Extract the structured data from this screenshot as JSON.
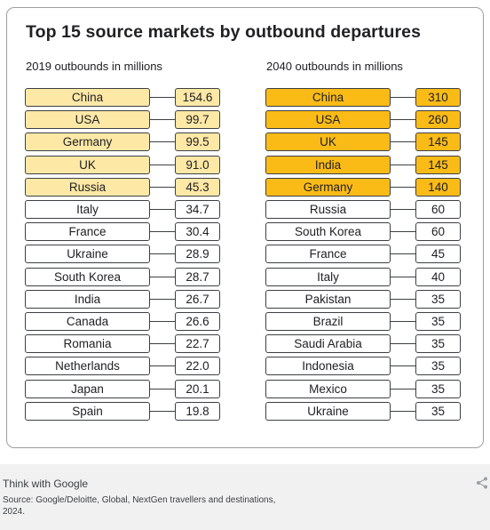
{
  "chart_data": [
    {
      "type": "table",
      "title": "Top 15 source markets by outbound departures",
      "subtitle": "2019 outbounds in millions",
      "categories": [
        "China",
        "USA",
        "Germany",
        "UK",
        "Russia",
        "Italy",
        "France",
        "Ukraine",
        "South Korea",
        "India",
        "Canada",
        "Romania",
        "Netherlands",
        "Japan",
        "Spain"
      ],
      "values": [
        "154.6",
        "99.7",
        "99.5",
        "91.0",
        "45.3",
        "34.7",
        "30.4",
        "28.9",
        "28.7",
        "26.7",
        "26.6",
        "22.7",
        "22.0",
        "20.1",
        "19.8"
      ],
      "highlight_top": 5,
      "highlight_color": "#fde8a6"
    },
    {
      "type": "table",
      "subtitle": "2040 outbounds in millions",
      "categories": [
        "China",
        "USA",
        "UK",
        "India",
        "Germany",
        "Russia",
        "South Korea",
        "France",
        "Italy",
        "Pakistan",
        "Brazil",
        "Saudi Arabia",
        "Indonesia",
        "Mexico",
        "Ukraine"
      ],
      "values": [
        "310",
        "260",
        "145",
        "145",
        "140",
        "60",
        "60",
        "45",
        "40",
        "35",
        "35",
        "35",
        "35",
        "35",
        "35"
      ],
      "highlight_top": 5,
      "highlight_color": "#fbbb17"
    }
  ],
  "footer": {
    "brand": "Think with Google",
    "source": "Source: Google/Deloitte, Global, NextGen travellers and destinations, 2024.",
    "share_icon": "share-icon"
  }
}
